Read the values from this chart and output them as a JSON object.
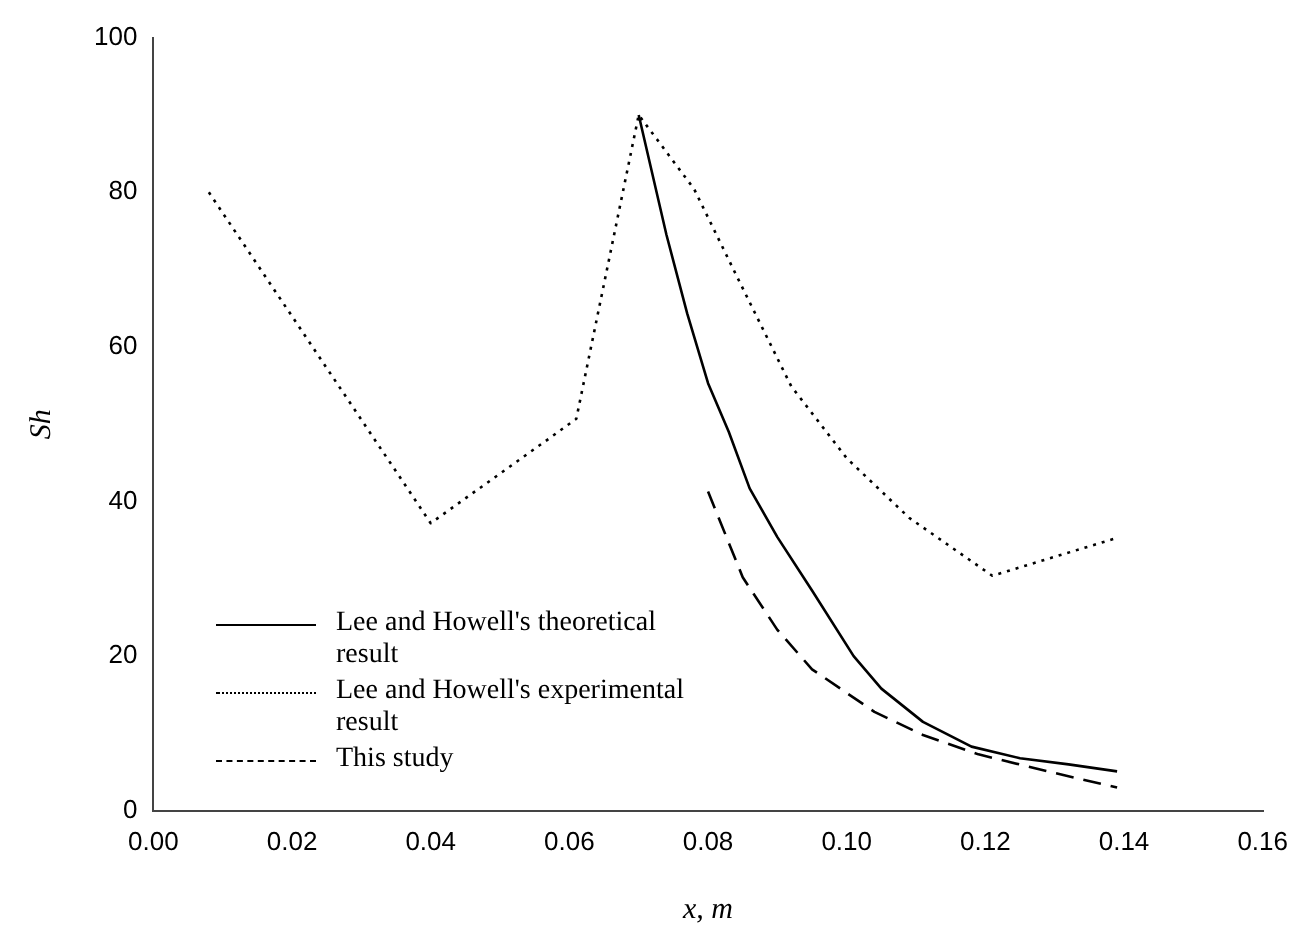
{
  "chart_data": {
    "type": "line",
    "xlabel": "x, m",
    "ylabel": "Sh",
    "xlim": [
      0,
      0.16
    ],
    "ylim": [
      0,
      100
    ],
    "xticks": [
      {
        "value": 0,
        "label": "0.00"
      },
      {
        "value": 0.02,
        "label": "0.02"
      },
      {
        "value": 0.04,
        "label": "0.04"
      },
      {
        "value": 0.06,
        "label": "0.06"
      },
      {
        "value": 0.08,
        "label": "0.08"
      },
      {
        "value": 0.1,
        "label": "0.10"
      },
      {
        "value": 0.12,
        "label": "0.12"
      },
      {
        "value": 0.14,
        "label": "0.14"
      },
      {
        "value": 0.16,
        "label": "0.16"
      }
    ],
    "yticks": [
      0,
      20,
      40,
      60,
      80,
      100
    ],
    "grid": false,
    "legend": "bottom left",
    "marker": "none",
    "series": [
      {
        "name": "Lee and Howell's theoretical result",
        "color": "#000000",
        "line_style": "solid",
        "x": [
          0.07,
          0.074,
          0.077,
          0.08,
          0.083,
          0.086,
          0.09,
          0.095,
          0.101,
          0.105,
          0.111,
          0.118,
          0.125,
          0.132,
          0.139
        ],
        "values": [
          90,
          74.5,
          64.3,
          55.3,
          49,
          41.7,
          35.4,
          28.5,
          20,
          15.8,
          11.5,
          8.3,
          6.8,
          6,
          5.1
        ]
      },
      {
        "name": "Lee and Howell's experimental result",
        "color": "#000000",
        "line_style": "dotted",
        "x": [
          0.008,
          0.04,
          0.057,
          0.061,
          0.07,
          0.078,
          0.084,
          0.092,
          0.1,
          0.109,
          0.121,
          0.139
        ],
        "values": [
          80,
          37.2,
          48.1,
          50.7,
          90,
          80.4,
          69.4,
          54.9,
          45.6,
          37.9,
          30.4,
          35.3
        ]
      },
      {
        "name": "This study",
        "color": "#000000",
        "line_style": "dashed",
        "x": [
          0.08,
          0.085,
          0.09,
          0.095,
          0.104,
          0.111,
          0.119,
          0.129,
          0.139
        ],
        "values": [
          41.3,
          30.2,
          23.4,
          18.3,
          12.8,
          9.8,
          7.3,
          5.1,
          3
        ]
      }
    ]
  }
}
